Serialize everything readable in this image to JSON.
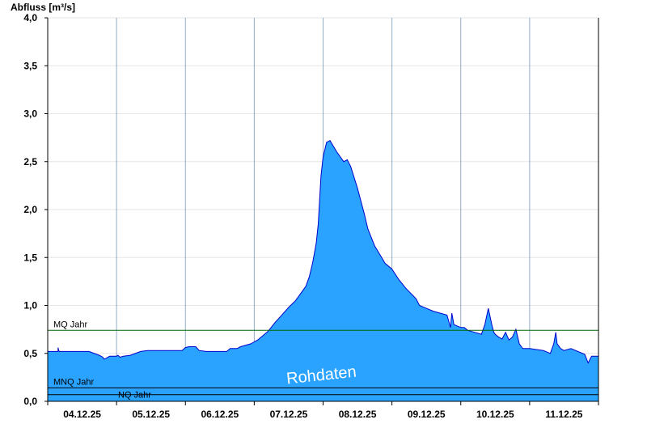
{
  "chart_data": {
    "type": "area",
    "title": "",
    "xlabel": "",
    "ylabel": "Abfluss [m³/s]",
    "ylim": [
      0,
      4.0
    ],
    "yticks": [
      "0,0",
      "0,5",
      "1,0",
      "1,5",
      "2,0",
      "2,5",
      "3,0",
      "3,5",
      "4,0"
    ],
    "xlim": [
      0,
      8.0
    ],
    "xtick_labels": [
      "04.12.25",
      "05.12.25",
      "06.12.25",
      "07.12.25",
      "08.12.25",
      "09.12.25",
      "10.12.25",
      "11.12.25"
    ],
    "grid": true,
    "series_color": "#29a3ff",
    "series_line_color": "#0000cc",
    "series": [
      {
        "x": [
          0.0,
          0.15,
          0.15,
          0.16,
          0.17,
          0.18,
          0.3,
          0.6,
          0.75,
          0.8,
          0.82,
          0.85,
          0.9,
          0.95,
          1.0,
          1.02,
          1.05,
          1.1,
          1.2,
          1.35,
          1.45,
          1.5,
          1.75,
          1.95,
          2.0,
          2.05,
          2.1,
          2.15,
          2.2,
          2.3,
          2.4,
          2.6,
          2.65,
          2.7,
          2.75,
          2.8,
          2.95,
          3.0,
          3.05,
          3.1,
          3.2,
          3.3,
          3.4,
          3.5,
          3.6,
          3.7,
          3.75,
          3.8,
          3.85,
          3.9,
          3.93,
          3.95,
          3.97,
          4.0,
          4.05,
          4.1,
          4.2,
          4.3,
          4.35,
          4.4,
          4.5,
          4.6,
          4.65,
          4.75,
          4.85,
          4.9,
          5.0,
          5.1,
          5.2,
          5.35,
          5.4,
          5.5,
          5.6,
          5.8,
          5.85,
          5.87,
          5.9,
          6.0,
          6.05,
          6.1,
          6.2,
          6.3,
          6.35,
          6.4,
          6.45,
          6.48,
          6.5,
          6.55,
          6.6,
          6.65,
          6.7,
          6.75,
          6.8,
          6.85,
          6.9,
          7.0,
          7.2,
          7.3,
          7.35,
          7.38,
          7.4,
          7.45,
          7.5,
          7.6,
          7.8,
          7.85,
          7.9,
          8.0
        ],
        "y": [
          0.52,
          0.52,
          0.56,
          0.53,
          0.52,
          0.52,
          0.52,
          0.52,
          0.48,
          0.46,
          0.44,
          0.45,
          0.47,
          0.47,
          0.47,
          0.48,
          0.46,
          0.47,
          0.48,
          0.52,
          0.53,
          0.53,
          0.53,
          0.53,
          0.56,
          0.57,
          0.57,
          0.57,
          0.53,
          0.52,
          0.52,
          0.52,
          0.55,
          0.55,
          0.55,
          0.57,
          0.6,
          0.62,
          0.64,
          0.67,
          0.73,
          0.82,
          0.9,
          0.98,
          1.05,
          1.15,
          1.2,
          1.3,
          1.45,
          1.65,
          1.85,
          2.1,
          2.35,
          2.55,
          2.7,
          2.72,
          2.6,
          2.5,
          2.52,
          2.45,
          2.22,
          1.95,
          1.8,
          1.62,
          1.5,
          1.44,
          1.38,
          1.27,
          1.18,
          1.07,
          1.0,
          0.97,
          0.94,
          0.9,
          0.77,
          0.92,
          0.8,
          0.77,
          0.77,
          0.74,
          0.72,
          0.7,
          0.8,
          0.97,
          0.8,
          0.72,
          0.7,
          0.67,
          0.65,
          0.72,
          0.64,
          0.67,
          0.75,
          0.6,
          0.55,
          0.55,
          0.53,
          0.5,
          0.6,
          0.72,
          0.6,
          0.55,
          0.53,
          0.55,
          0.49,
          0.4,
          0.47,
          0.47
        ]
      }
    ],
    "reference_lines": [
      {
        "label": "MQ Jahr",
        "value": 0.74,
        "color": "#006400"
      },
      {
        "label": "MNQ Jahr",
        "value": 0.14,
        "color": "#000000"
      },
      {
        "label": "NQ Jahr",
        "value": 0.07,
        "color": "#000000"
      }
    ],
    "watermark": "Rohdaten"
  }
}
